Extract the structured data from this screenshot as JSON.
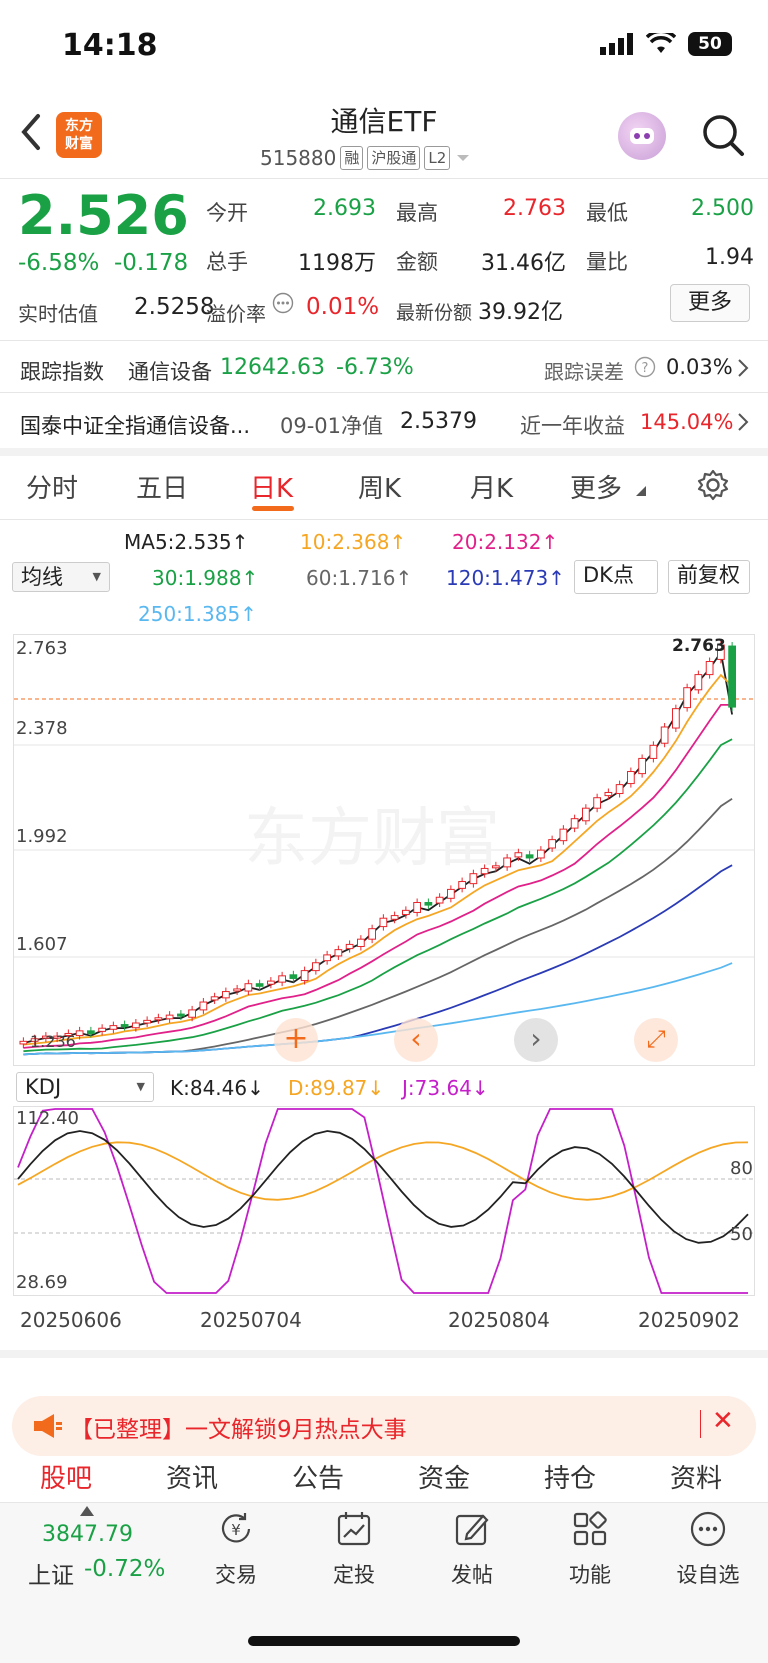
{
  "status": {
    "time": "14:18",
    "battery": "50"
  },
  "header": {
    "logo_line1": "东方",
    "logo_line2": "财富",
    "title": "通信ETF",
    "code": "515880",
    "tags": [
      "融",
      "沪股通",
      "L2"
    ]
  },
  "quote": {
    "price": "2.526",
    "pct": "-6.58%",
    "chg": "-0.178",
    "est_label": "实时估值",
    "est_value": "2.5258",
    "stats": [
      {
        "label": "今开",
        "value": "2.693",
        "color": "#1aa146"
      },
      {
        "label": "最高",
        "value": "2.763",
        "color": "#e8262b"
      },
      {
        "label": "最低",
        "value": "2.500",
        "color": "#1aa146"
      },
      {
        "label": "总手",
        "value": "1198万",
        "color": "#222222"
      },
      {
        "label": "金额",
        "value": "31.46亿",
        "color": "#222222"
      },
      {
        "label": "量比",
        "value": "1.94",
        "color": "#222222"
      }
    ],
    "premium_label": "溢价率",
    "premium_value": "0.01%",
    "shares_label": "最新份额",
    "shares_value": "39.92亿",
    "more_label": "更多"
  },
  "tracking": {
    "label": "跟踪指数",
    "index_name": "通信设备",
    "index_value": "12642.63",
    "index_pct": "-6.73%",
    "error_label": "跟踪误差",
    "error_value": "0.03%"
  },
  "fund": {
    "name": "国泰中证全指通信设备...",
    "nav_date": "09-01净值",
    "nav_value": "2.5379",
    "return_label": "近一年收益",
    "return_value": "145.04%"
  },
  "tabs": [
    "分时",
    "五日",
    "日K",
    "周K",
    "月K",
    "更多"
  ],
  "active_tab": "日K",
  "ma": {
    "selector": "均线",
    "ma5": "MA5:2.535↑",
    "ma10": "10:2.368↑",
    "ma20": "20:2.132↑",
    "ma30": "30:1.988↑",
    "ma60": "60:1.716↑",
    "ma120": "120:1.473↑",
    "ma250": "250:1.385↑",
    "dk_label": "DK点",
    "fq_label": "前复权",
    "colors": {
      "ma5": "#222222",
      "ma10": "#f5a623",
      "ma20": "#e0218a",
      "ma30": "#1aa146",
      "ma60": "#666666",
      "ma120": "#2a3bb5",
      "ma250": "#5ab8f0"
    }
  },
  "kline_axis": {
    "top": "2.763",
    "y2": "2.378",
    "y3": "1.992",
    "y4": "1.607",
    "high_marker": "2.763",
    "low_label": "1.236",
    "watermark": "东方财富"
  },
  "kdj": {
    "selector": "KDJ",
    "k": "K:84.46↓",
    "d": "D:89.87↓",
    "j": "J:73.64↓",
    "top": "112.40",
    "bottom": "28.69",
    "lvl80": "80",
    "lvl50": "50"
  },
  "dates": [
    "20250606",
    "20250704",
    "20250804",
    "20250902"
  ],
  "banner": {
    "text": "【已整理】一文解锁9月热点大事"
  },
  "bottom_tabs": [
    "股吧",
    "资讯",
    "公告",
    "资金",
    "持仓",
    "资料"
  ],
  "nav": {
    "index_value": "3847.79",
    "index_name": "上证",
    "index_pct": "-0.72%",
    "items": [
      "交易",
      "定投",
      "发帖",
      "功能",
      "设自选"
    ]
  },
  "chart_data": {
    "type": "candlestick",
    "y_range": [
      1.236,
      2.763
    ],
    "close_series": [
      1.25,
      1.26,
      1.27,
      1.27,
      1.28,
      1.29,
      1.28,
      1.3,
      1.31,
      1.31,
      1.32,
      1.33,
      1.34,
      1.35,
      1.35,
      1.37,
      1.4,
      1.42,
      1.44,
      1.45,
      1.47,
      1.46,
      1.48,
      1.5,
      1.49,
      1.52,
      1.55,
      1.58,
      1.6,
      1.62,
      1.64,
      1.68,
      1.72,
      1.73,
      1.75,
      1.78,
      1.77,
      1.8,
      1.83,
      1.86,
      1.89,
      1.91,
      1.92,
      1.95,
      1.97,
      1.95,
      1.98,
      2.02,
      2.06,
      2.1,
      2.14,
      2.18,
      2.2,
      2.23,
      2.28,
      2.33,
      2.38,
      2.45,
      2.52,
      2.6,
      2.65,
      2.7,
      2.763,
      2.526
    ]
  }
}
